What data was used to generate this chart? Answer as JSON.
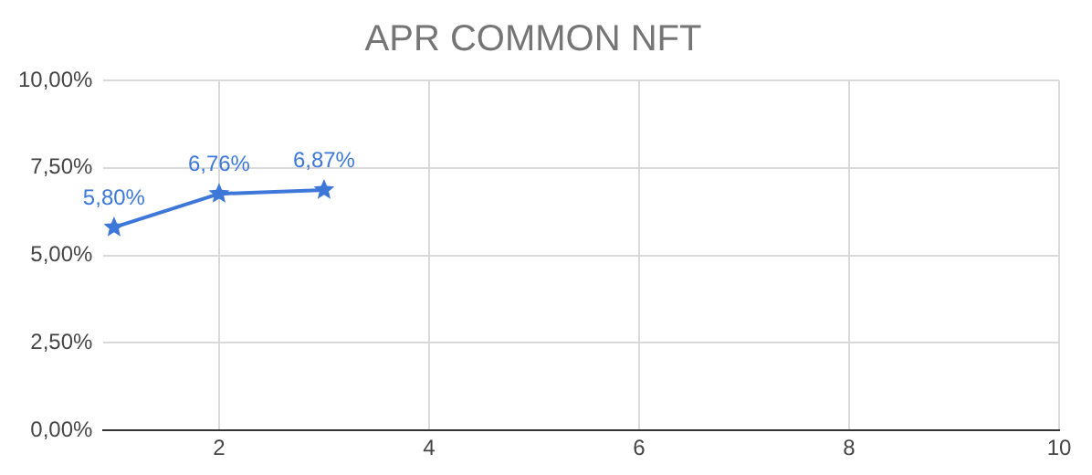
{
  "chart_data": {
    "type": "line",
    "title": "APR COMMON NFT",
    "x": [
      1,
      2,
      3
    ],
    "series": [
      {
        "color": "#3d78d8",
        "values": [
          5.8,
          6.76,
          6.87
        ],
        "value_labels": [
          "5,80%",
          "6,76%",
          "6,87%"
        ]
      }
    ],
    "xlim": [
      0.9,
      10
    ],
    "xticks": [
      2,
      4,
      6,
      8,
      10
    ],
    "ylim": [
      0,
      10
    ],
    "yticks": [
      {
        "value": 0,
        "label": "0,00%"
      },
      {
        "value": 2.5,
        "label": "2,50%"
      },
      {
        "value": 5,
        "label": "5,00%"
      },
      {
        "value": 7.5,
        "label": "7,50%"
      },
      {
        "value": 10,
        "label": "10,00%"
      }
    ],
    "grid": true,
    "marker": "star",
    "line_style": "solid"
  }
}
